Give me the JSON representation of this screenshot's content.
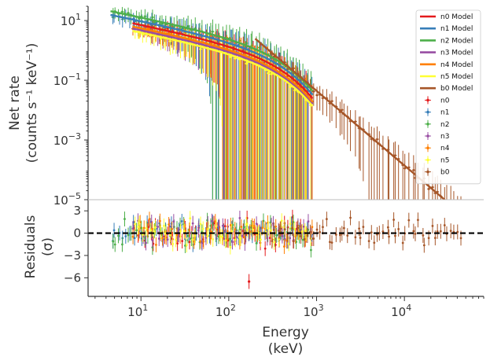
{
  "chart_data": [
    {
      "type": "line",
      "panel": "spectrum",
      "xscale": "log",
      "yscale": "log",
      "xlim": [
        2.5,
        80000
      ],
      "ylim": [
        1e-05,
        30
      ],
      "ylabel_line1": "Net rate",
      "ylabel_line2": "(counts s⁻¹ keV⁻¹)",
      "yticks": [
        {
          "value": 10,
          "label_base": "10",
          "label_exp": "1"
        },
        {
          "value": 0.1,
          "label_base": "10",
          "label_exp": "−1"
        },
        {
          "value": 0.001,
          "label_base": "10",
          "label_exp": "−3"
        },
        {
          "value": 1e-05,
          "label_base": "10",
          "label_exp": "−5"
        }
      ],
      "legend_position": "upper-right",
      "series": [
        {
          "name": "n0 Model",
          "color": "#e41a1c",
          "e_min": 8,
          "e_max": 900,
          "pivot": 20,
          "amp": 4.5,
          "alpha": -0.6,
          "ecut": 300
        },
        {
          "name": "n1 Model",
          "color": "#377eb8",
          "e_min": 4.5,
          "e_max": 900,
          "pivot": 20,
          "amp": 6.0,
          "alpha": -0.6,
          "ecut": 300
        },
        {
          "name": "n2 Model",
          "color": "#4daf4a",
          "e_min": 4.5,
          "e_max": 900,
          "pivot": 20,
          "amp": 8.0,
          "alpha": -0.6,
          "ecut": 300
        },
        {
          "name": "n3 Model",
          "color": "#984ea3",
          "e_min": 8,
          "e_max": 900,
          "pivot": 20,
          "amp": 3.0,
          "alpha": -0.6,
          "ecut": 300
        },
        {
          "name": "n4 Model",
          "color": "#ff7f00",
          "e_min": 8,
          "e_max": 900,
          "pivot": 20,
          "amp": 3.5,
          "alpha": -0.6,
          "ecut": 300
        },
        {
          "name": "n5 Model",
          "color": "#ffff33",
          "e_min": 8,
          "e_max": 900,
          "pivot": 20,
          "amp": 2.5,
          "alpha": -0.6,
          "ecut": 300
        },
        {
          "name": "b0 Model",
          "color": "#a65628",
          "e_min": 200,
          "e_max": 40000,
          "pivot": 500,
          "amp": 0.25,
          "alpha": -2.5,
          "ecut": 0
        }
      ],
      "data_series": [
        {
          "name": "n0",
          "color": "#e41a1c",
          "e_min": 8,
          "e_max": 900,
          "count": 55
        },
        {
          "name": "n1",
          "color": "#377eb8",
          "e_min": 4.5,
          "e_max": 900,
          "count": 60
        },
        {
          "name": "n2",
          "color": "#4daf4a",
          "e_min": 4.5,
          "e_max": 900,
          "count": 60
        },
        {
          "name": "n3",
          "color": "#984ea3",
          "e_min": 8,
          "e_max": 900,
          "count": 55
        },
        {
          "name": "n4",
          "color": "#ff7f00",
          "e_min": 8,
          "e_max": 900,
          "count": 55
        },
        {
          "name": "n5",
          "color": "#ffff33",
          "e_min": 8,
          "e_max": 900,
          "count": 55
        },
        {
          "name": "b0",
          "color": "#a65628",
          "e_min": 300,
          "e_max": 45000,
          "count": 60
        }
      ]
    },
    {
      "type": "scatter",
      "panel": "residuals",
      "xscale": "log",
      "xlim": [
        2.5,
        80000
      ],
      "ylim": [
        -8.5,
        4.5
      ],
      "xlabel_line1": "Energy",
      "xlabel_line2": "(keV)",
      "ylabel_line1": "Residuals",
      "ylabel_line2": "(σ)",
      "yticks": [
        {
          "value": 3,
          "label": "3"
        },
        {
          "value": 0,
          "label": "0"
        },
        {
          "value": -3,
          "label": "−3"
        },
        {
          "value": -6,
          "label": "−6"
        }
      ],
      "xticks": [
        {
          "value": 10,
          "label_base": "10",
          "label_exp": "1"
        },
        {
          "value": 100,
          "label_base": "10",
          "label_exp": "2"
        },
        {
          "value": 1000,
          "label_base": "10",
          "label_exp": "3"
        },
        {
          "value": 10000,
          "label_base": "10",
          "label_exp": "4"
        }
      ],
      "zero_line": {
        "value": 0,
        "style": "dashed",
        "color": "#000000"
      },
      "outlier": {
        "series": "n0",
        "energy": 170,
        "value": -6.5
      }
    }
  ]
}
